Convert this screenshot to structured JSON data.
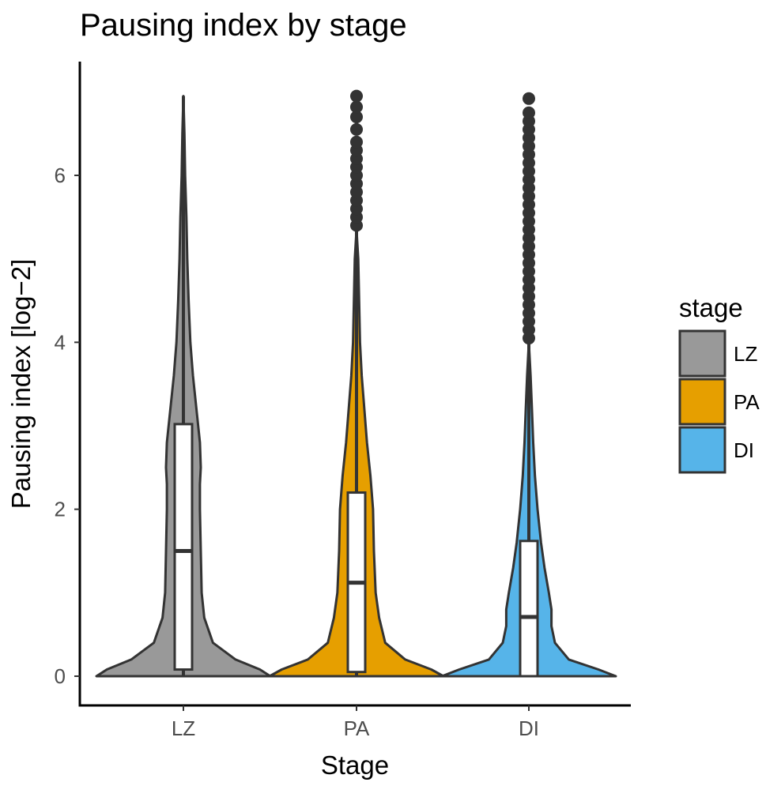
{
  "chart_data": {
    "type": "violin",
    "title": "Pausing index by stage",
    "xlabel": "Stage",
    "ylabel": "Pausing index [log−2]",
    "ylim": [
      -0.4,
      7.3
    ],
    "yticks": [
      0,
      2,
      4,
      6
    ],
    "grid": false,
    "legend_position": "right",
    "legend_title": "stage",
    "categories": [
      "LZ",
      "PA",
      "DI"
    ],
    "series": [
      {
        "name": "LZ",
        "color": "#999999",
        "box": {
          "q1": 0.08,
          "median": 1.5,
          "q3": 3.02,
          "whisker_low": 0.0,
          "whisker_high": 6.95
        },
        "outliers": [],
        "density": [
          [
            0.0,
            1.0
          ],
          [
            0.08,
            0.88
          ],
          [
            0.2,
            0.6
          ],
          [
            0.4,
            0.34
          ],
          [
            0.7,
            0.24
          ],
          [
            1.0,
            0.21
          ],
          [
            1.5,
            0.2
          ],
          [
            2.0,
            0.19
          ],
          [
            2.3,
            0.19
          ],
          [
            2.5,
            0.2
          ],
          [
            2.8,
            0.19
          ],
          [
            3.2,
            0.15
          ],
          [
            3.6,
            0.11
          ],
          [
            4.0,
            0.08
          ],
          [
            4.5,
            0.06
          ],
          [
            5.0,
            0.045
          ],
          [
            5.5,
            0.035
          ],
          [
            6.0,
            0.02
          ],
          [
            6.5,
            0.012
          ],
          [
            6.95,
            0.0
          ]
        ]
      },
      {
        "name": "PA",
        "color": "#E69F00",
        "box": {
          "q1": 0.05,
          "median": 1.12,
          "q3": 2.2,
          "whisker_low": 0.0,
          "whisker_high": 5.35
        },
        "outliers": [
          5.4,
          5.5,
          5.6,
          5.7,
          5.8,
          5.9,
          6.0,
          6.1,
          6.2,
          6.3,
          6.4,
          6.55,
          6.7,
          6.82,
          6.95
        ],
        "density": [
          [
            0.0,
            1.0
          ],
          [
            0.08,
            0.86
          ],
          [
            0.2,
            0.56
          ],
          [
            0.4,
            0.33
          ],
          [
            0.7,
            0.26
          ],
          [
            1.0,
            0.22
          ],
          [
            1.5,
            0.2
          ],
          [
            2.0,
            0.19
          ],
          [
            2.4,
            0.16
          ],
          [
            2.8,
            0.12
          ],
          [
            3.2,
            0.09
          ],
          [
            3.6,
            0.06
          ],
          [
            4.0,
            0.04
          ],
          [
            4.5,
            0.03
          ],
          [
            5.0,
            0.02
          ],
          [
            5.35,
            0.0
          ]
        ]
      },
      {
        "name": "DI",
        "color": "#56B4E9",
        "box": {
          "q1": 0.0,
          "median": 0.71,
          "q3": 1.62,
          "whisker_low": 0.0,
          "whisker_high": 4.0
        },
        "outliers": [
          4.05,
          4.15,
          4.25,
          4.35,
          4.45,
          4.55,
          4.65,
          4.75,
          4.85,
          4.95,
          5.05,
          5.15,
          5.25,
          5.35,
          5.45,
          5.55,
          5.65,
          5.75,
          5.85,
          5.95,
          6.05,
          6.15,
          6.25,
          6.35,
          6.45,
          6.55,
          6.65,
          6.75,
          6.92
        ],
        "density": [
          [
            0.0,
            1.0
          ],
          [
            0.08,
            0.8
          ],
          [
            0.2,
            0.46
          ],
          [
            0.4,
            0.3
          ],
          [
            0.6,
            0.26
          ],
          [
            0.8,
            0.26
          ],
          [
            1.0,
            0.23
          ],
          [
            1.3,
            0.18
          ],
          [
            1.6,
            0.14
          ],
          [
            2.0,
            0.1
          ],
          [
            2.4,
            0.07
          ],
          [
            2.8,
            0.05
          ],
          [
            3.2,
            0.035
          ],
          [
            3.6,
            0.02
          ],
          [
            4.0,
            0.0
          ]
        ]
      }
    ]
  }
}
